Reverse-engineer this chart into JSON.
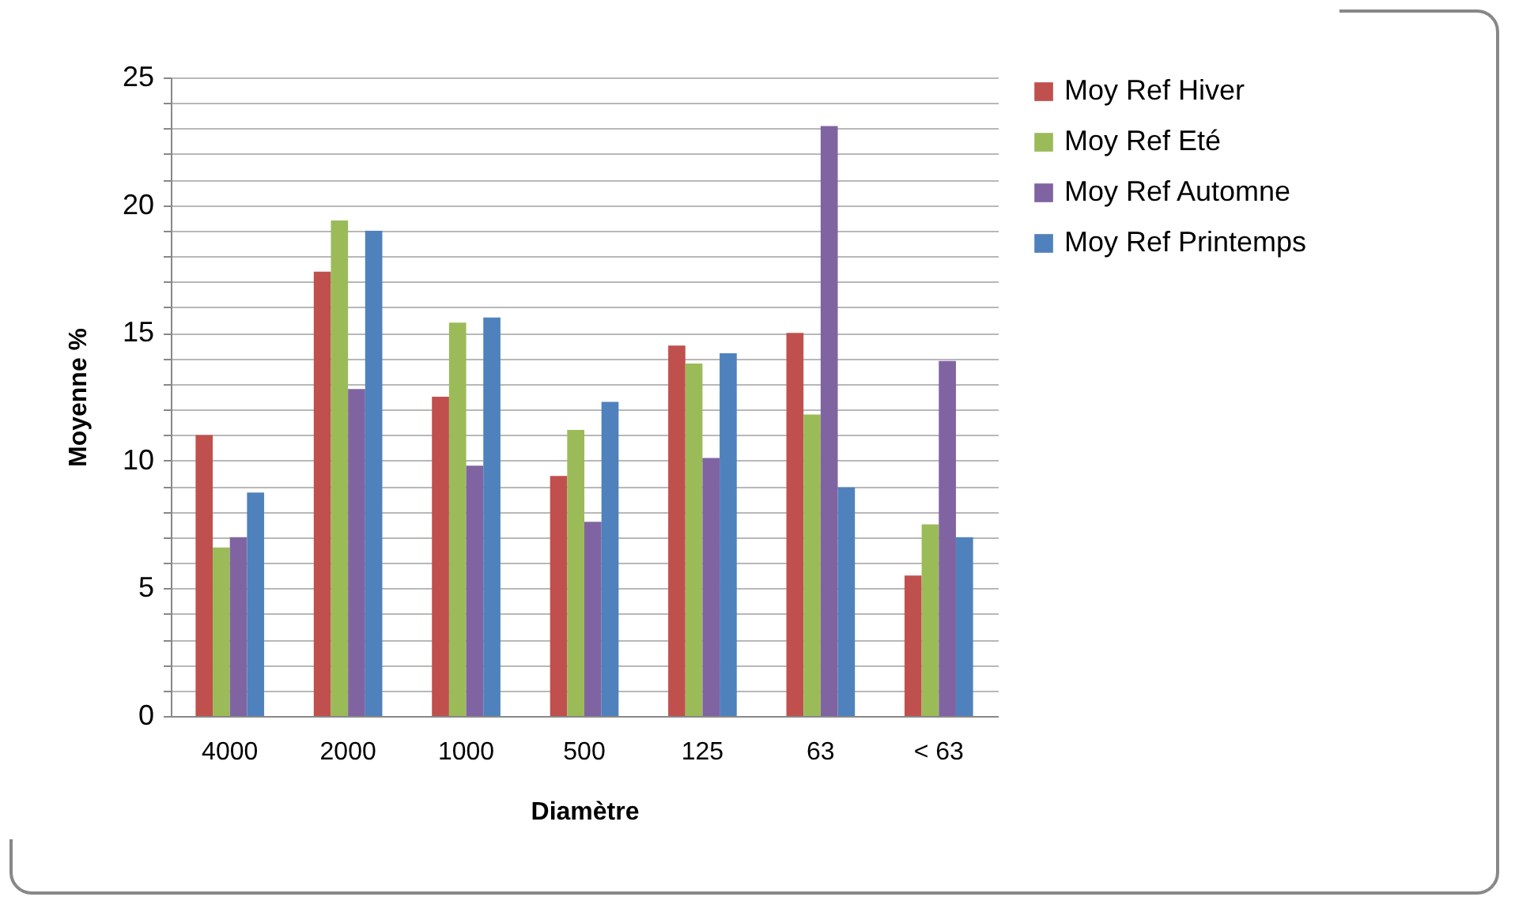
{
  "chart_data": {
    "type": "bar",
    "xlabel": "Diamètre",
    "ylabel": "Moyenne %",
    "categories": [
      "4000",
      "2000",
      "1000",
      "500",
      "125",
      "63",
      "< 63"
    ],
    "series": [
      {
        "name": "Moy Ref Hiver",
        "color": "#c0504d",
        "values": [
          11.0,
          17.4,
          12.5,
          9.4,
          14.5,
          15.0,
          5.5
        ]
      },
      {
        "name": "Moy Ref Eté",
        "color": "#9bbb59",
        "values": [
          6.6,
          19.4,
          15.4,
          11.2,
          13.8,
          11.8,
          7.5
        ]
      },
      {
        "name": "Moy Ref Automne",
        "color": "#8064a2",
        "values": [
          7.0,
          12.8,
          9.8,
          7.6,
          10.1,
          23.1,
          13.9
        ]
      },
      {
        "name": "Moy Ref Printemps",
        "color": "#4f81bd",
        "values": [
          8.75,
          19.0,
          15.6,
          12.3,
          14.2,
          8.95,
          7.0
        ]
      }
    ],
    "ylim": [
      0,
      25
    ],
    "yticks": [
      0,
      {
        "value": 1,
        "label": null
      },
      {
        "value": 2,
        "label": null
      },
      {
        "value": 3,
        "label": null
      },
      {
        "value": 4,
        "label": null
      },
      5,
      {
        "value": 6,
        "label": null
      },
      {
        "value": 7,
        "label": null
      },
      {
        "value": 8,
        "label": null
      },
      {
        "value": 9,
        "label": null
      },
      10,
      {
        "value": 11,
        "label": null
      },
      {
        "value": 12,
        "label": null
      },
      {
        "value": 13,
        "label": null
      },
      {
        "value": 14,
        "label": null
      },
      15,
      {
        "value": 16,
        "label": null
      },
      {
        "value": 17,
        "label": null
      },
      {
        "value": 18,
        "label": null
      },
      {
        "value": 19,
        "label": null
      },
      20,
      {
        "value": 21,
        "label": null
      },
      {
        "value": 22,
        "label": null
      },
      {
        "value": 23,
        "label": null
      },
      {
        "value": 24,
        "label": null
      },
      25
    ],
    "grid": "y",
    "legend": "right"
  }
}
